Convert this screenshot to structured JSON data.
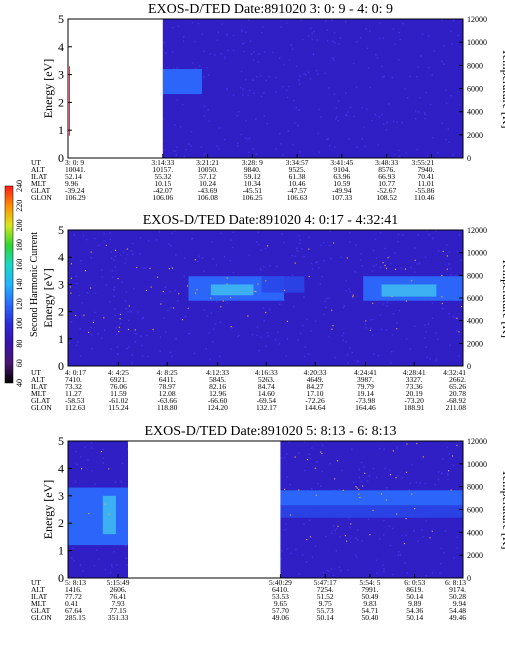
{
  "colors": {
    "background": "#2f1fc4",
    "speckle": "#4d3cff",
    "feature_core": "#3fb7f2",
    "feature_mid": "#2b6dff",
    "feature_outer": "#2a46e8",
    "points": "#d4a64a",
    "gap": "#ffffff"
  },
  "colorbar": {
    "label": "Second Harmonic Current",
    "ticks": [
      "40",
      "60",
      "80",
      "100",
      "120",
      "140",
      "160",
      "180",
      "200",
      "220",
      "240"
    ],
    "stops": [
      "#000000",
      "#4a1670",
      "#3a12b0",
      "#2a2ad8",
      "#2a6aff",
      "#1fb4ff",
      "#19d8c8",
      "#2fd62f",
      "#d8e81c",
      "#ff8c00",
      "#ff1a1a"
    ]
  },
  "chart_data": [
    {
      "type": "heatmap",
      "title": "EXOS-D/TED   Date:891020  3: 0: 9 - 4: 0: 9",
      "ylabel": "Energy [eV]",
      "ylabel_right": "Temperature [K]",
      "ylim": [
        0,
        5
      ],
      "yticks": [
        "0",
        "1",
        "2",
        "3",
        "4",
        "5"
      ],
      "y2lim": [
        0,
        12000
      ],
      "y2ticks": [
        "0",
        "2000",
        "4000",
        "6000",
        "8000",
        "10000",
        "12000"
      ],
      "time_range": [
        "3:0:9",
        "4:0:9"
      ],
      "data_gaps": [
        [
          "3:0:9",
          "3:14:33"
        ]
      ],
      "features": [
        {
          "t": [
            "3:14:33",
            "3:20:30"
          ],
          "e": [
            2.3,
            3.2
          ],
          "level": "mid"
        }
      ],
      "temperature_points": {
        "t": [
          "3:0:9",
          "3:0:9"
        ],
        "T": [
          0,
          12000
        ]
      },
      "orbit_labels": [
        "UT",
        "ALT",
        "ILAT",
        "MLT",
        "GLAT",
        "GLON"
      ],
      "orbit_columns": [
        {
          "time": "3:0:9",
          "values": [
            "3: 0: 9",
            "10041.",
            "52.14",
            "9.96",
            "-39.24",
            "106.29"
          ]
        },
        {
          "time": "3:14:33",
          "values": [
            "3:14:33",
            "10157.",
            "55.32",
            "10.15",
            "-42.07",
            "106.06"
          ]
        },
        {
          "time": "3:21:21",
          "values": [
            "3:21:21",
            "10050.",
            "57.12",
            "10.24",
            "-43.69",
            "106.08"
          ]
        },
        {
          "time": "3:28:9",
          "values": [
            "3:28: 9",
            "9840.",
            "59.12",
            "10.34",
            "-45.51",
            "106.25"
          ]
        },
        {
          "time": "3:34:57",
          "values": [
            "3:34:57",
            "9525.",
            "61.38",
            "10.46",
            "-47.57",
            "106.63"
          ]
        },
        {
          "time": "3:41:45",
          "values": [
            "3:41:45",
            "9104.",
            "63.96",
            "10.59",
            "-49.94",
            "107.33"
          ]
        },
        {
          "time": "3:48:33",
          "values": [
            "3:48:33",
            "8576.",
            "66.93",
            "10.77",
            "-52.67",
            "108.52"
          ]
        },
        {
          "time": "3:55:21",
          "values": [
            "3:55:21",
            "7940.",
            "70.41",
            "11.01",
            "-55.86",
            "110.46"
          ]
        }
      ]
    },
    {
      "type": "heatmap",
      "title": "EXOS-D/TED   Date:891020  4: 0:17 - 4:32:41",
      "ylabel": "Energy [eV]",
      "ylabel_right": "Temperature [K]",
      "ylim": [
        0,
        5
      ],
      "yticks": [
        "0",
        "1",
        "2",
        "3",
        "4",
        "5"
      ],
      "y2lim": [
        0,
        12000
      ],
      "y2ticks": [
        "0",
        "2000",
        "4000",
        "6000",
        "8000",
        "10000",
        "12000"
      ],
      "time_range": [
        "4:0:17",
        "4:32:41"
      ],
      "data_gaps": [],
      "features": [
        {
          "t": [
            "4:10:10",
            "4:18:00"
          ],
          "e": [
            2.4,
            3.3
          ],
          "level": "mid"
        },
        {
          "t": [
            "4:12:00",
            "4:15:30"
          ],
          "e": [
            2.6,
            3.0
          ],
          "level": "core"
        },
        {
          "t": [
            "4:16:10",
            "4:19:40"
          ],
          "e": [
            2.7,
            3.3
          ],
          "level": "outer"
        },
        {
          "t": [
            "4:24:30",
            "4:32:41"
          ],
          "e": [
            2.4,
            3.3
          ],
          "level": "mid"
        },
        {
          "t": [
            "4:26:00",
            "4:30:30"
          ],
          "e": [
            2.55,
            3.0
          ],
          "level": "core"
        }
      ],
      "temperature_points": {
        "t": [
          "4:0:17",
          "4:32:41"
        ],
        "T": [
          3000,
          11000
        ]
      },
      "orbit_labels": [
        "UT",
        "ALT",
        "ILAT",
        "MLT",
        "GLAT",
        "GLON"
      ],
      "orbit_columns": [
        {
          "time": "4:0:17",
          "values": [
            "4: 0:17",
            "7410.",
            "73.32",
            "11.27",
            "-58.53",
            "112.63"
          ]
        },
        {
          "time": "4:4:25",
          "values": [
            "4: 4:25",
            "6921.",
            "76.06",
            "11.59",
            "-61.02",
            "115.24"
          ]
        },
        {
          "time": "4:8:25",
          "values": [
            "4: 8:25",
            "6411.",
            "78.97",
            "12.08",
            "-63.66",
            "118.80"
          ]
        },
        {
          "time": "4:12:33",
          "values": [
            "4:12:33",
            "5845.",
            "82.16",
            "12.96",
            "-66.60",
            "124.20"
          ]
        },
        {
          "time": "4:16:33",
          "values": [
            "4:16:33",
            "5263.",
            "84.74",
            "14.60",
            "-69.54",
            "132.17"
          ]
        },
        {
          "time": "4:20:33",
          "values": [
            "4:20:33",
            "4649.",
            "84.27",
            "17.10",
            "-72.26",
            "144.64"
          ]
        },
        {
          "time": "4:24:41",
          "values": [
            "4:24:41",
            "3987.",
            "79.79",
            "19.14",
            "-73.98",
            "164.46"
          ]
        },
        {
          "time": "4:28:41",
          "values": [
            "4:28:41",
            "3327.",
            "73.36",
            "20.19",
            "-73.20",
            "188.91"
          ]
        },
        {
          "time": "4:32:41",
          "values": [
            "4:32:41",
            "2662.",
            "65.26",
            "20.78",
            "-68.92",
            "211.08"
          ]
        }
      ]
    },
    {
      "type": "heatmap",
      "title": "EXOS-D/TED   Date:891020  5: 8:13 - 6: 8:13",
      "ylabel": "Energy [eV]",
      "ylabel_right": "Temperature [K]",
      "ylim": [
        0,
        5
      ],
      "yticks": [
        "0",
        "1",
        "2",
        "3",
        "4",
        "5"
      ],
      "y2lim": [
        0,
        12000
      ],
      "y2ticks": [
        "0",
        "2000",
        "4000",
        "6000",
        "8000",
        "10000",
        "12000"
      ],
      "time_range": [
        "5:8:13",
        "6:8:13"
      ],
      "data_gaps": [
        [
          "5:17:20",
          "5:40:29"
        ]
      ],
      "features": [
        {
          "t": [
            "5:8:13",
            "5:17:20"
          ],
          "e": [
            1.2,
            3.3
          ],
          "level": "mid"
        },
        {
          "t": [
            "5:13:30",
            "5:15:30"
          ],
          "e": [
            1.6,
            3.0
          ],
          "level": "core"
        },
        {
          "t": [
            "5:40:29",
            "6:8:13"
          ],
          "e": [
            2.65,
            3.2
          ],
          "level": "mid"
        },
        {
          "t": [
            "5:40:29",
            "6:8:13"
          ],
          "e": [
            2.2,
            2.65
          ],
          "level": "outer"
        }
      ],
      "temperature_points": {
        "t": [
          "5:8:13",
          "6:8:13"
        ],
        "T": [
          3000,
          12000
        ]
      },
      "orbit_labels": [
        "UT",
        "ALT",
        "ILAT",
        "MLT",
        "GLAT",
        "GLON"
      ],
      "orbit_columns": [
        {
          "time": "5:8:13",
          "values": [
            "5: 8:13",
            "1416.",
            "77.72",
            "0.41",
            "67.64",
            "285.15"
          ]
        },
        {
          "time": "5:15:49",
          "values": [
            "5:15:49",
            "2606.",
            "76.41",
            "7.93",
            "77.15",
            "351.33"
          ]
        },
        {
          "time": "5:40:29",
          "values": [
            "5:40:29",
            "6410.",
            "53.53",
            "9.65",
            "57.70",
            "49.06"
          ]
        },
        {
          "time": "5:47:17",
          "values": [
            "5:47:17",
            "7254.",
            "51.52",
            "9.75",
            "55.73",
            "50.14"
          ]
        },
        {
          "time": "5:54:5",
          "values": [
            "5:54: 5",
            "7991.",
            "50.49",
            "9.83",
            "54.71",
            "50.40"
          ]
        },
        {
          "time": "6:0:53",
          "values": [
            "6: 0:53",
            "8619.",
            "50.14",
            "9.89",
            "54.36",
            "50.14"
          ]
        },
        {
          "time": "6:8:13",
          "values": [
            "6: 8:13",
            "9174.",
            "50.28",
            "9.94",
            "54.48",
            "49.46"
          ]
        }
      ]
    }
  ]
}
